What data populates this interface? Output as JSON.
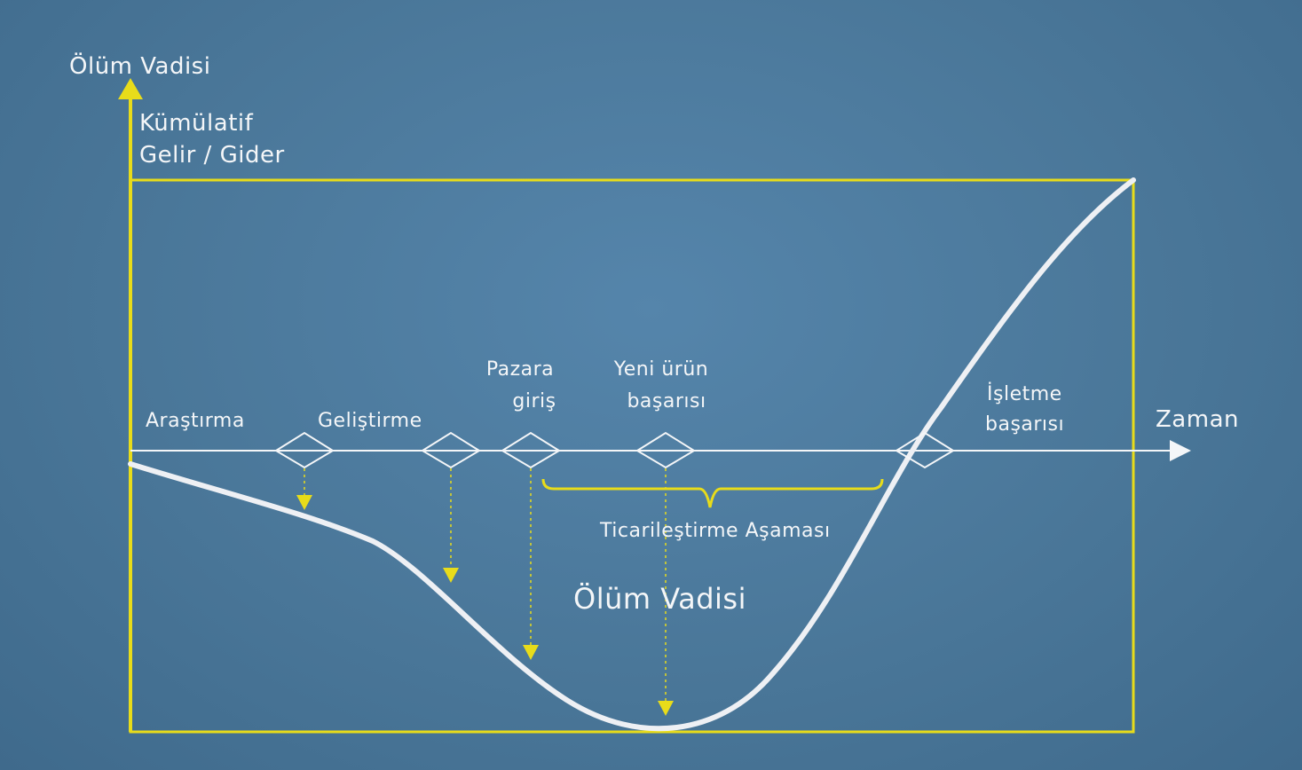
{
  "title": "Ölüm Vadisi",
  "y_axis_label": [
    "Kümülatif",
    "Gelir / Gider"
  ],
  "x_axis_label": "Zaman",
  "stages": [
    {
      "label": [
        "Araştırma"
      ]
    },
    {
      "label": [
        "Geliştirme"
      ]
    },
    {
      "label": [
        "Pazara",
        "giriş"
      ]
    },
    {
      "label": [
        "Yeni ürün",
        "başarısı"
      ]
    },
    {
      "label": [
        "İşletme",
        "başarısı"
      ]
    }
  ],
  "commercialization_label": "Ticarileştirme Aşaması",
  "valley_label": "Ölüm Vadisi",
  "colors": {
    "background": "#4a7799",
    "accent": "#e8dc1a",
    "curve": "#eef0f4",
    "text": "#f4f6f8"
  }
}
